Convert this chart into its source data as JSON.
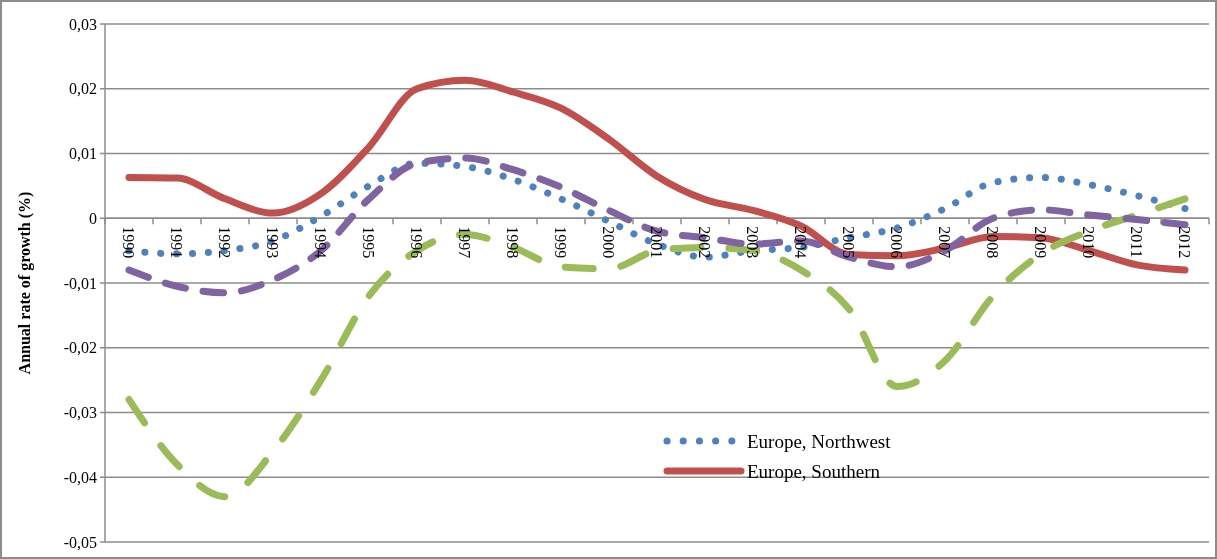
{
  "chart_data": {
    "type": "line",
    "ylabel": "Annual rate of growth (%)",
    "categories": [
      "1990",
      "1991",
      "1992",
      "1993",
      "1994",
      "1995",
      "1996",
      "1997",
      "1998",
      "1999",
      "2000",
      "2001",
      "2002",
      "2003",
      "2004",
      "2005",
      "2006",
      "2007",
      "2008",
      "2009",
      "2010",
      "2011",
      "2012"
    ],
    "series": [
      {
        "name": "Europe, Northwest",
        "color": "#4f81bd",
        "line_style": "dotted",
        "values": [
          -0.005,
          -0.0055,
          -0.005,
          -0.0035,
          0.0003,
          0.005,
          0.0085,
          0.008,
          0.006,
          0.003,
          -0.0005,
          -0.004,
          -0.006,
          -0.005,
          -0.0045,
          -0.003,
          -0.0015,
          0.0015,
          0.0055,
          0.0063,
          0.0052,
          0.0035,
          0.0015
        ]
      },
      {
        "name": "Europe, Southern",
        "color": "#c0504d",
        "line_style": "solid",
        "values": [
          0.0063,
          0.0062,
          0.003,
          0.0008,
          0.0038,
          0.011,
          0.02,
          0.0213,
          0.0195,
          0.017,
          0.0122,
          0.0065,
          0.0029,
          0.0012,
          -0.0012,
          -0.0056,
          -0.0058,
          -0.0046,
          -0.0028,
          -0.003,
          -0.005,
          -0.0072,
          -0.008
        ]
      },
      {
        "color": "#9bbb59",
        "line_style": "dashed",
        "values": [
          -0.028,
          -0.038,
          -0.043,
          -0.036,
          -0.025,
          -0.012,
          -0.005,
          -0.0025,
          -0.0045,
          -0.0075,
          -0.0078,
          -0.005,
          -0.0045,
          -0.005,
          -0.008,
          -0.014,
          -0.026,
          -0.022,
          -0.012,
          -0.0055,
          -0.002,
          0.0005,
          0.003
        ]
      },
      {
        "color": "#8064a2",
        "line_style": "dashed",
        "values": [
          -0.008,
          -0.0105,
          -0.0115,
          -0.0095,
          -0.005,
          0.003,
          0.0085,
          0.0093,
          0.0075,
          0.0048,
          0.0012,
          -0.002,
          -0.003,
          -0.004,
          -0.0035,
          -0.006,
          -0.0075,
          -0.005,
          0,
          0.0013,
          0.0005,
          -0.0002,
          -0.001
        ]
      }
    ],
    "ylim": [
      -0.05,
      0.03
    ],
    "yticks": [
      {
        "value": -0.05,
        "label": "-0,05"
      },
      {
        "value": -0.04,
        "label": "-0,04"
      },
      {
        "value": -0.03,
        "label": "-0,03"
      },
      {
        "value": -0.02,
        "label": "-0,02"
      },
      {
        "value": -0.01,
        "label": "-0,01"
      },
      0,
      {
        "value": 0.01,
        "label": "0,01"
      },
      {
        "value": 0.02,
        "label": "0,02"
      },
      {
        "value": 0.03,
        "label": "0,03"
      }
    ],
    "grid": "y",
    "legend": "bottom",
    "marker": "none"
  }
}
